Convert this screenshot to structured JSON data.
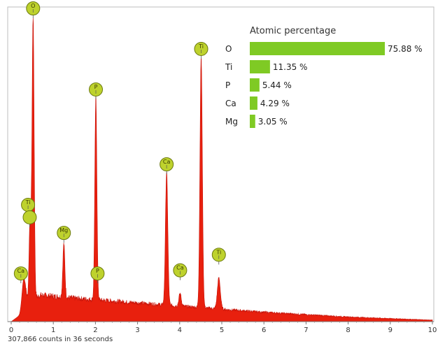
{
  "chart_data": {
    "type": "area",
    "x_range": [
      0,
      10
    ],
    "x_ticks": [
      "0",
      "1",
      "2",
      "3",
      "4",
      "5",
      "6",
      "7",
      "8",
      "9",
      "10"
    ],
    "footer": "307,866 counts in 36 seconds",
    "spectrum_color": "#e8200e",
    "marker_color": "#bed22d",
    "bar_color": "#7fca24",
    "baseline": [
      {
        "x": 0.0,
        "y": 0.0
      },
      {
        "x": 0.2,
        "y": 0.02
      },
      {
        "x": 0.35,
        "y": 0.06
      },
      {
        "x": 0.7,
        "y": 0.085
      },
      {
        "x": 1.5,
        "y": 0.075
      },
      {
        "x": 2.5,
        "y": 0.065
      },
      {
        "x": 3.5,
        "y": 0.055
      },
      {
        "x": 4.5,
        "y": 0.045
      },
      {
        "x": 6.0,
        "y": 0.03
      },
      {
        "x": 8.0,
        "y": 0.015
      },
      {
        "x": 10.0,
        "y": 0.005
      }
    ],
    "peaks": [
      {
        "label": "Ca",
        "x": 0.3,
        "y": 0.14,
        "width": 0.06
      },
      {
        "label": "Ti",
        "x": 0.45,
        "y": 0.34,
        "width": 0.035
      },
      {
        "label": "O",
        "x": 0.52,
        "y": 0.975,
        "width": 0.035
      },
      {
        "label": "Mg",
        "x": 1.25,
        "y": 0.25,
        "width": 0.035
      },
      {
        "label": "P",
        "x": 2.01,
        "y": 0.72,
        "width": 0.035
      },
      {
        "label": "Ca",
        "x": 3.69,
        "y": 0.48,
        "width": 0.04
      },
      {
        "label": "Ca",
        "x": 4.01,
        "y": 0.09,
        "width": 0.04
      },
      {
        "label": "Ti",
        "x": 4.51,
        "y": 0.85,
        "width": 0.04
      },
      {
        "label": "Ti",
        "x": 4.93,
        "y": 0.14,
        "width": 0.05
      }
    ],
    "markers": [
      {
        "label": "O",
        "x": 0.52,
        "y": 1.0
      },
      {
        "label": "P",
        "x": 2.01,
        "y": 0.74
      },
      {
        "label": "Ca",
        "x": 3.69,
        "y": 0.5
      },
      {
        "label": "Ti",
        "x": 4.51,
        "y": 0.87
      },
      {
        "label": "Ti",
        "x": 0.4,
        "y": 0.37
      },
      {
        "label": "",
        "x": 0.44,
        "y": 0.33
      },
      {
        "label": "Mg",
        "x": 1.25,
        "y": 0.28
      },
      {
        "label": "Ca",
        "x": 0.23,
        "y": 0.15
      },
      {
        "label": "P",
        "x": 2.05,
        "y": 0.15
      },
      {
        "label": "Ca",
        "x": 4.01,
        "y": 0.16
      },
      {
        "label": "Ti",
        "x": 4.93,
        "y": 0.21
      }
    ],
    "legend": {
      "title": "Atomic percentage",
      "max": 75.88,
      "items": [
        {
          "name": "O",
          "value": 75.88,
          "label": "75.88 %"
        },
        {
          "name": "Ti",
          "value": 11.35,
          "label": "11.35 %"
        },
        {
          "name": "P",
          "value": 5.44,
          "label": "5.44 %"
        },
        {
          "name": "Ca",
          "value": 4.29,
          "label": "4.29 %"
        },
        {
          "name": "Mg",
          "value": 3.05,
          "label": "3.05 %"
        }
      ]
    }
  }
}
